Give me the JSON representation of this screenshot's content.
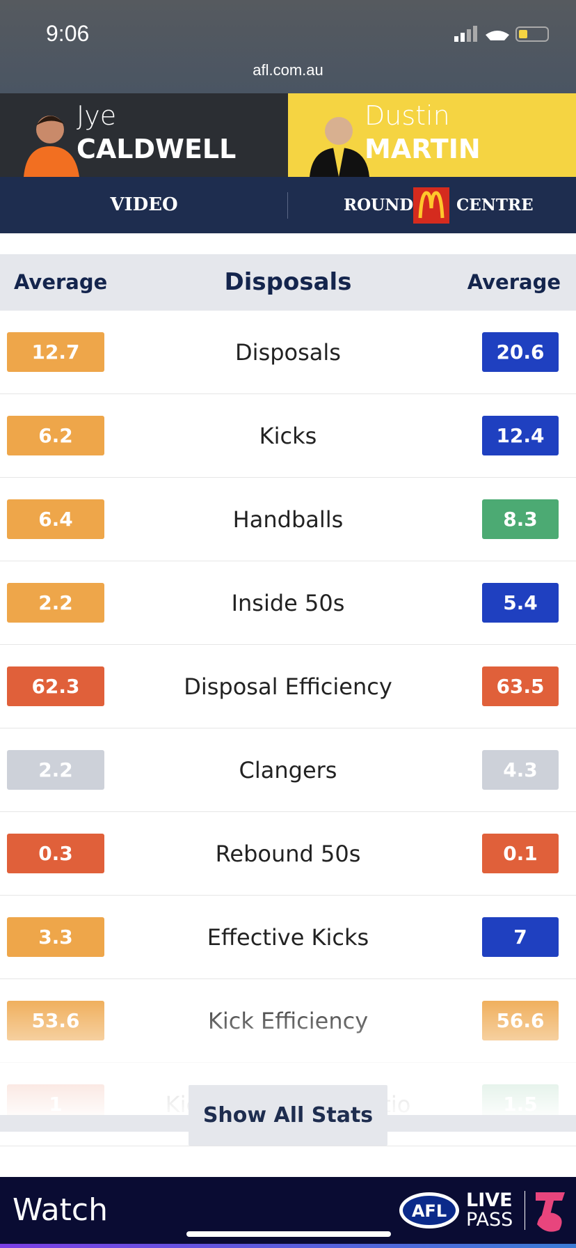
{
  "status_bar": {
    "time": "9:06",
    "url": "afl.com.au"
  },
  "players": [
    {
      "first": "Jye",
      "last": "CALDWELL"
    },
    {
      "first": "Dustin",
      "last": "MARTIN"
    }
  ],
  "nav": {
    "video": "VIDEO",
    "round": "ROUND",
    "centre": "CENTRE"
  },
  "stats": {
    "left_header": "Average",
    "title": "Disposals",
    "right_header": "Average",
    "rows": [
      {
        "label": "Disposals",
        "left": 12.7,
        "left_color": "#eea64a",
        "right": 20.6,
        "right_color": "#1f40c0"
      },
      {
        "label": "Kicks",
        "left": 6.2,
        "left_color": "#eea64a",
        "right": 12.4,
        "right_color": "#1f40c0"
      },
      {
        "label": "Handballs",
        "left": 6.4,
        "left_color": "#eea64a",
        "right": 8.3,
        "right_color": "#4caa73"
      },
      {
        "label": "Inside 50s",
        "left": 2.2,
        "left_color": "#eea64a",
        "right": 5.4,
        "right_color": "#1f40c0"
      },
      {
        "label": "Disposal Efficiency",
        "left": 62.3,
        "left_color": "#e0603a",
        "right": 63.5,
        "right_color": "#e0603a"
      },
      {
        "label": "Clangers",
        "left": 2.2,
        "left_color": "#cdd1d9",
        "right": 4.3,
        "right_color": "#cdd1d9"
      },
      {
        "label": "Rebound 50s",
        "left": 0.3,
        "left_color": "#e0603a",
        "right": 0.1,
        "right_color": "#e0603a"
      },
      {
        "label": "Effective Kicks",
        "left": 3.3,
        "left_color": "#eea64a",
        "right": 7,
        "right_color": "#1f40c0"
      },
      {
        "label": "Kick Efficiency",
        "left": 53.6,
        "left_color": "#eea64a",
        "right": 56.6,
        "right_color": "#eea64a"
      },
      {
        "label": "Kick to Handball Ratio",
        "left": 1,
        "left_color": "#e0603a",
        "right": 1.5,
        "right_color": "#4caa73"
      }
    ]
  },
  "button": "Show All Stats",
  "footer": {
    "watch": "Watch",
    "afl": "AFL",
    "live": "LIVE",
    "pass": "PASS"
  }
}
